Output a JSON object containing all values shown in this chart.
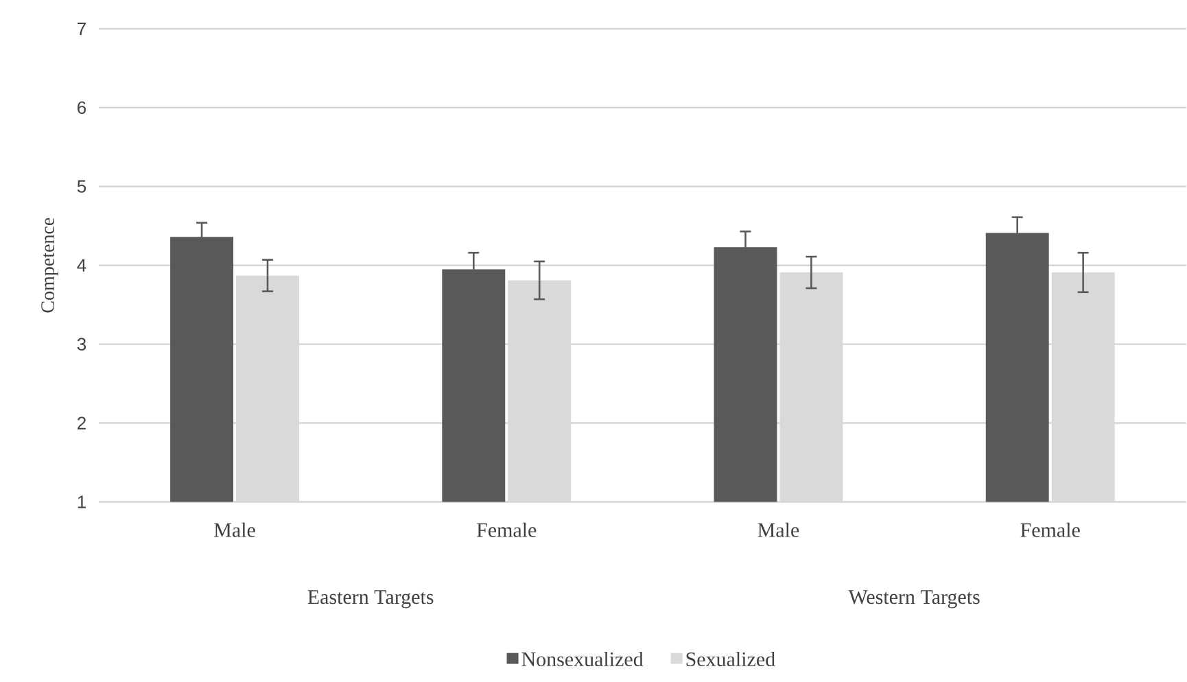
{
  "chart_data": {
    "type": "bar",
    "ylabel": "Competence",
    "categories": [
      "Male",
      "Female",
      "Male",
      "Female"
    ],
    "annotations": [
      "Eastern Targets",
      "Western Targets"
    ],
    "series": [
      {
        "name": "Nonsexualized",
        "color": "#595959",
        "values": [
          4.36,
          3.95,
          4.23,
          4.41
        ],
        "errors": [
          0.18,
          0.21,
          0.2,
          0.2
        ]
      },
      {
        "name": "Sexualized",
        "color": "#d9d9d9",
        "values": [
          3.87,
          3.81,
          3.91,
          3.91
        ],
        "errors": [
          0.2,
          0.24,
          0.2,
          0.25
        ]
      }
    ],
    "ylim": [
      1,
      7
    ],
    "yticks": [
      1,
      2,
      3,
      4,
      5,
      6,
      7
    ],
    "grid": "y",
    "legend": "bottom"
  }
}
